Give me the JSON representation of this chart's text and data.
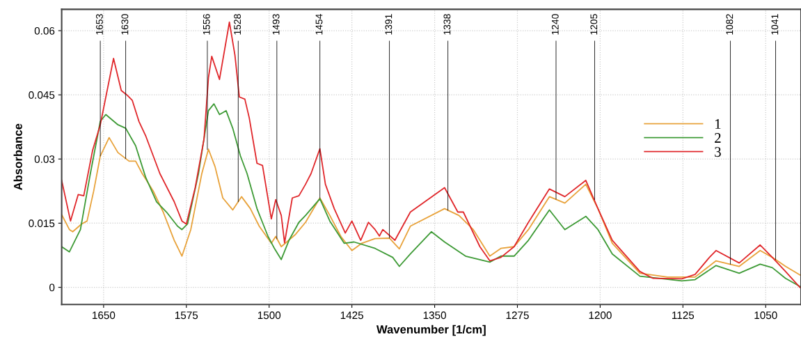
{
  "chart_data": {
    "type": "line",
    "xlabel": "Wavenumber [1/cm]",
    "ylabel": "Absorbance",
    "xlim": [
      1688,
      1018
    ],
    "ylim": [
      -0.004,
      0.065
    ],
    "xticks": [
      1650,
      1575,
      1500,
      1425,
      1350,
      1275,
      1200,
      1125,
      1050
    ],
    "yticks": [
      0,
      0.015,
      0.03,
      0.045,
      0.06
    ],
    "grid": true,
    "legend": "right",
    "line_style": "solid",
    "annotations": [
      {
        "text": "1653",
        "x": 1653,
        "y": 0.0307
      },
      {
        "text": "1630",
        "x": 1630,
        "y": 0.0301
      },
      {
        "text": "1556",
        "x": 1556,
        "y": 0.0322
      },
      {
        "text": "1528",
        "x": 1528,
        "y": 0.02
      },
      {
        "text": "1493",
        "x": 1493,
        "y": 0.0113
      },
      {
        "text": "1454",
        "x": 1454,
        "y": 0.0209
      },
      {
        "text": "1391",
        "x": 1391,
        "y": 0.0115
      },
      {
        "text": "1338",
        "x": 1338,
        "y": 0.018
      },
      {
        "text": "1240",
        "x": 1240,
        "y": 0.0206
      },
      {
        "text": "1205",
        "x": 1205,
        "y": 0.0205
      },
      {
        "text": "1082",
        "x": 1082,
        "y": 0.0054
      },
      {
        "text": "1041",
        "x": 1041,
        "y": 0.0065
      }
    ],
    "series": [
      {
        "name": "1",
        "color": "#e8a23a",
        "x": [
          1688,
          1681,
          1678,
          1670,
          1665,
          1659,
          1653,
          1645,
          1637,
          1627,
          1621,
          1615,
          1605,
          1596,
          1586,
          1579,
          1571,
          1561,
          1555,
          1549,
          1542,
          1533,
          1525,
          1517,
          1509,
          1498,
          1494,
          1489,
          1476,
          1467,
          1454,
          1445,
          1435,
          1425,
          1416,
          1404,
          1391,
          1382,
          1372,
          1341,
          1328,
          1315,
          1300,
          1290,
          1278,
          1265,
          1246,
          1232,
          1213,
          1202,
          1189,
          1164,
          1139,
          1114,
          1095,
          1074,
          1055,
          1044,
          1032,
          1019
        ],
        "values": [
          0.017,
          0.0135,
          0.013,
          0.0148,
          0.0155,
          0.0225,
          0.0307,
          0.035,
          0.0315,
          0.0295,
          0.0295,
          0.0266,
          0.0225,
          0.0176,
          0.011,
          0.0073,
          0.0135,
          0.0266,
          0.0323,
          0.0282,
          0.0209,
          0.0181,
          0.0212,
          0.0184,
          0.0143,
          0.0103,
          0.0119,
          0.0095,
          0.0124,
          0.0152,
          0.0209,
          0.0168,
          0.0119,
          0.0086,
          0.0103,
          0.0114,
          0.0115,
          0.009,
          0.0143,
          0.0184,
          0.0168,
          0.0135,
          0.0073,
          0.0091,
          0.0095,
          0.0135,
          0.0212,
          0.0197,
          0.0241,
          0.0184,
          0.0103,
          0.0033,
          0.0024,
          0.0024,
          0.0062,
          0.0049,
          0.0086,
          0.007,
          0.0049,
          0.0029
        ]
      },
      {
        "name": "2",
        "color": "#3d9a35",
        "x": [
          1688,
          1681,
          1671,
          1662,
          1653,
          1648,
          1637,
          1630,
          1621,
          1612,
          1602,
          1593,
          1583,
          1579,
          1574,
          1564,
          1555,
          1550,
          1545,
          1539,
          1533,
          1526,
          1520,
          1511,
          1501,
          1495,
          1489,
          1482,
          1473,
          1467,
          1454,
          1445,
          1432,
          1423,
          1404,
          1388,
          1382,
          1372,
          1353,
          1341,
          1322,
          1300,
          1290,
          1278,
          1265,
          1246,
          1232,
          1213,
          1202,
          1189,
          1164,
          1126,
          1114,
          1095,
          1074,
          1055,
          1044,
          1032,
          1019
        ],
        "values": [
          0.0095,
          0.0083,
          0.0135,
          0.0266,
          0.0388,
          0.0404,
          0.038,
          0.0372,
          0.0331,
          0.0258,
          0.02,
          0.0176,
          0.0143,
          0.0135,
          0.0148,
          0.0266,
          0.0413,
          0.0429,
          0.0404,
          0.0413,
          0.0372,
          0.0307,
          0.0266,
          0.0184,
          0.0119,
          0.009,
          0.0065,
          0.011,
          0.0152,
          0.0168,
          0.0207,
          0.0155,
          0.0103,
          0.0106,
          0.0091,
          0.007,
          0.0049,
          0.0078,
          0.013,
          0.0106,
          0.0073,
          0.0059,
          0.0073,
          0.0073,
          0.011,
          0.0181,
          0.0135,
          0.0166,
          0.0135,
          0.0078,
          0.0026,
          0.0015,
          0.0018,
          0.0051,
          0.0033,
          0.0054,
          0.0046,
          0.0021,
          0.0002
        ]
      },
      {
        "name": "3",
        "color": "#e0262a",
        "x": [
          1688,
          1680,
          1673,
          1668,
          1660,
          1653,
          1641,
          1634,
          1629,
          1624,
          1618,
          1612,
          1599,
          1586,
          1579,
          1575,
          1567,
          1559,
          1555,
          1552,
          1545,
          1536,
          1531,
          1527,
          1522,
          1518,
          1511,
          1506,
          1498,
          1494,
          1489,
          1486,
          1479,
          1473,
          1467,
          1462,
          1454,
          1449,
          1441,
          1431,
          1425,
          1417,
          1410,
          1404,
          1400,
          1397,
          1386,
          1372,
          1341,
          1329,
          1324,
          1309,
          1300,
          1290,
          1278,
          1265,
          1246,
          1232,
          1213,
          1202,
          1189,
          1164,
          1152,
          1126,
          1114,
          1101,
          1095,
          1074,
          1055,
          1044,
          1032,
          1019
        ],
        "values": [
          0.025,
          0.0155,
          0.0217,
          0.0214,
          0.032,
          0.038,
          0.0535,
          0.046,
          0.045,
          0.0437,
          0.0388,
          0.0355,
          0.0266,
          0.02,
          0.0155,
          0.0148,
          0.0233,
          0.0347,
          0.049,
          0.054,
          0.0486,
          0.062,
          0.0543,
          0.0445,
          0.044,
          0.0396,
          0.029,
          0.0285,
          0.016,
          0.0205,
          0.0168,
          0.0104,
          0.0209,
          0.0214,
          0.0241,
          0.0266,
          0.0324,
          0.0241,
          0.0184,
          0.0127,
          0.0155,
          0.011,
          0.0152,
          0.0135,
          0.012,
          0.0135,
          0.011,
          0.0176,
          0.0233,
          0.0176,
          0.0176,
          0.0095,
          0.0062,
          0.007,
          0.0095,
          0.0152,
          0.023,
          0.0212,
          0.025,
          0.0184,
          0.011,
          0.0037,
          0.0021,
          0.002,
          0.003,
          0.007,
          0.0086,
          0.0057,
          0.0099,
          0.007,
          0.0037,
          0.0
        ]
      }
    ]
  }
}
